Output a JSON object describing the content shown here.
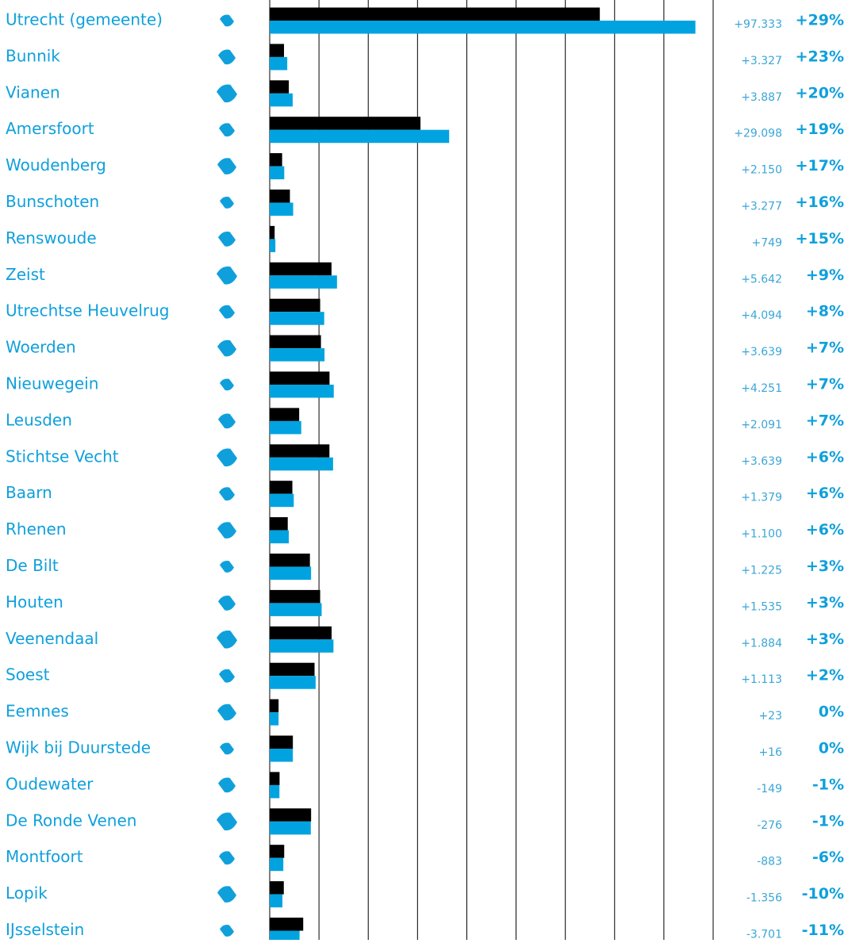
{
  "chart_data": {
    "type": "bar",
    "orientation": "horizontal",
    "categories": [
      "Utrecht (gemeente)",
      "Bunnik",
      "Vianen",
      "Amersfoort",
      "Woudenberg",
      "Bunschoten",
      "Renswoude",
      "Zeist",
      "Utrechtse Heuvelrug",
      "Woerden",
      "Nieuwegein",
      "Leusden",
      "Stichtse Vecht",
      "Baarn",
      "Rhenen",
      "De Bilt",
      "Houten",
      "Veenendaal",
      "Soest",
      "Eemnes",
      "Wijk bij Duurstede",
      "Oudewater",
      "De Ronde Venen",
      "Montfoort",
      "Lopik",
      "IJsselstein"
    ],
    "series": [
      {
        "color": "#000000",
        "values": [
          335000,
          14500,
          19400,
          153000,
          12600,
          20500,
          5000,
          62700,
          51200,
          52000,
          60700,
          29900,
          60600,
          23000,
          18300,
          40800,
          51200,
          62800,
          45500,
          9000,
          23500,
          10000,
          42000,
          14700,
          14300,
          34000
        ]
      },
      {
        "color": "#00a3e0",
        "values": [
          432000,
          17800,
          23300,
          182100,
          14750,
          23800,
          5750,
          68300,
          55300,
          55600,
          65000,
          32000,
          64300,
          24400,
          19400,
          42000,
          52700,
          64700,
          46600,
          9000,
          23500,
          9850,
          41700,
          13800,
          12900,
          30300
        ]
      }
    ],
    "changes": [
      "+97.333",
      "+3.327",
      "+3.887",
      "+29.098",
      "+2.150",
      "+3.277",
      "+749",
      "+5.642",
      "+4.094",
      "+3.639",
      "+4.251",
      "+2.091",
      "+3.639",
      "+1.379",
      "+1.100",
      "+1.225",
      "+1.535",
      "+1.884",
      "+1.113",
      "+23",
      "+16",
      "-149",
      "-276",
      "-883",
      "-1.356",
      "-3.701"
    ],
    "percentages": [
      "+29%",
      "+23%",
      "+20%",
      "+19%",
      "+17%",
      "+16%",
      "+15%",
      "+9%",
      "+8%",
      "+7%",
      "+7%",
      "+7%",
      "+6%",
      "+6%",
      "+6%",
      "+3%",
      "+3%",
      "+3%",
      "+2%",
      "0%",
      "0%",
      "-1%",
      "-1%",
      "-6%",
      "-10%",
      "-11%"
    ],
    "xlim": [
      0,
      450000
    ],
    "xticks": [
      0,
      50000,
      100000,
      150000,
      200000,
      250000,
      300000,
      350000,
      400000,
      450000
    ],
    "grid": true
  }
}
